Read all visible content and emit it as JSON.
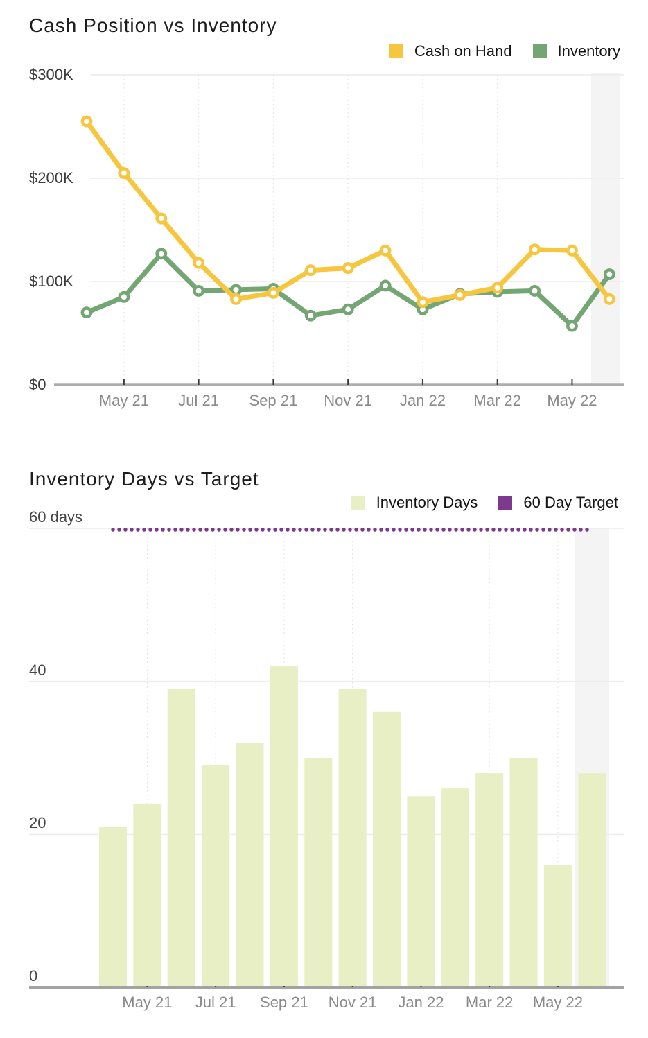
{
  "colors": {
    "background": "#FFFFFF",
    "title_text": "#1D1D1D",
    "legend_text": "#141414",
    "y_label_text": "#3C3C3C",
    "x_label_text": "#8A8A8A",
    "grid_line": "#ECECEC",
    "vertical_grid_dotted": "#DCDCDC",
    "axis_line_top_chart": "#ADADAD",
    "axis_line_bottom_chart": "#A3A3A3",
    "tick_mark": "#3A3A3A",
    "recent_period_band": "#F4F4F4",
    "cash_on_hand": "#F7C63F",
    "inventory": "#74A673",
    "inventory_days_bar": "#E9EFC4",
    "target_purple": "#7B3A8D"
  },
  "chart_data": [
    {
      "type": "line",
      "title": "Cash Position vs Inventory",
      "x": [
        "Apr 21",
        "May 21",
        "Jun 21",
        "Jul 21",
        "Aug 21",
        "Sep 21",
        "Oct 21",
        "Nov 21",
        "Dec 21",
        "Jan 22",
        "Feb 22",
        "Mar 22",
        "Apr 22",
        "May 22",
        "Jun 22"
      ],
      "xtick_labels": [
        "May 21",
        "Jul 21",
        "Sep 21",
        "Nov 21",
        "Jan 22",
        "Mar 22",
        "May 22"
      ],
      "yticks": [
        {
          "label": "$300K",
          "value": 300000
        },
        {
          "label": "$200K",
          "value": 200000
        },
        {
          "label": "$100K",
          "value": 100000
        },
        {
          "label": "$0",
          "value": 0
        }
      ],
      "ylim": [
        0,
        300000
      ],
      "grid": "horizontal solid + vertical dotted at ticks",
      "legend_position": "top-right",
      "recent_period_highlighted": true,
      "series": [
        {
          "name": "Cash on Hand",
          "color": "#F7C63F",
          "marker": "open-circle",
          "values": [
            255000,
            205000,
            161000,
            118000,
            83000,
            89000,
            111000,
            113000,
            130000,
            80000,
            87000,
            94000,
            131000,
            130000,
            83000
          ]
        },
        {
          "name": "Inventory",
          "color": "#74A673",
          "marker": "open-circle",
          "values": [
            70000,
            85000,
            127000,
            91000,
            92000,
            93000,
            67000,
            73000,
            96000,
            73000,
            88000,
            90000,
            91000,
            57000,
            107000
          ]
        }
      ]
    },
    {
      "type": "bar",
      "title": "Inventory Days vs Target",
      "categories": [
        "Apr 21",
        "May 21",
        "Jun 21",
        "Jul 21",
        "Aug 21",
        "Sep 21",
        "Oct 21",
        "Nov 21",
        "Dec 21",
        "Jan 22",
        "Feb 22",
        "Mar 22",
        "Apr 22",
        "May 22",
        "Jun 22"
      ],
      "xtick_labels": [
        "May 21",
        "Jul 21",
        "Sep 21",
        "Nov 21",
        "Jan 22",
        "Mar 22",
        "May 22"
      ],
      "yticks": [
        {
          "label": "60 days",
          "value": 60
        },
        {
          "label": "40",
          "value": 40
        },
        {
          "label": "20",
          "value": 20
        },
        {
          "label": "0",
          "value": 0
        }
      ],
      "ylim": [
        0,
        60
      ],
      "legend_position": "top-right",
      "recent_period_highlighted": true,
      "series": [
        {
          "name": "Inventory Days",
          "color": "#E9EFC4",
          "values": [
            21,
            24,
            39,
            29,
            32,
            42,
            30,
            39,
            36,
            25,
            26,
            28,
            30,
            16,
            28
          ]
        }
      ],
      "target_line": {
        "name": "60 Day Target",
        "value": 60,
        "color": "#7B3A8D",
        "style": "dotted"
      }
    }
  ]
}
